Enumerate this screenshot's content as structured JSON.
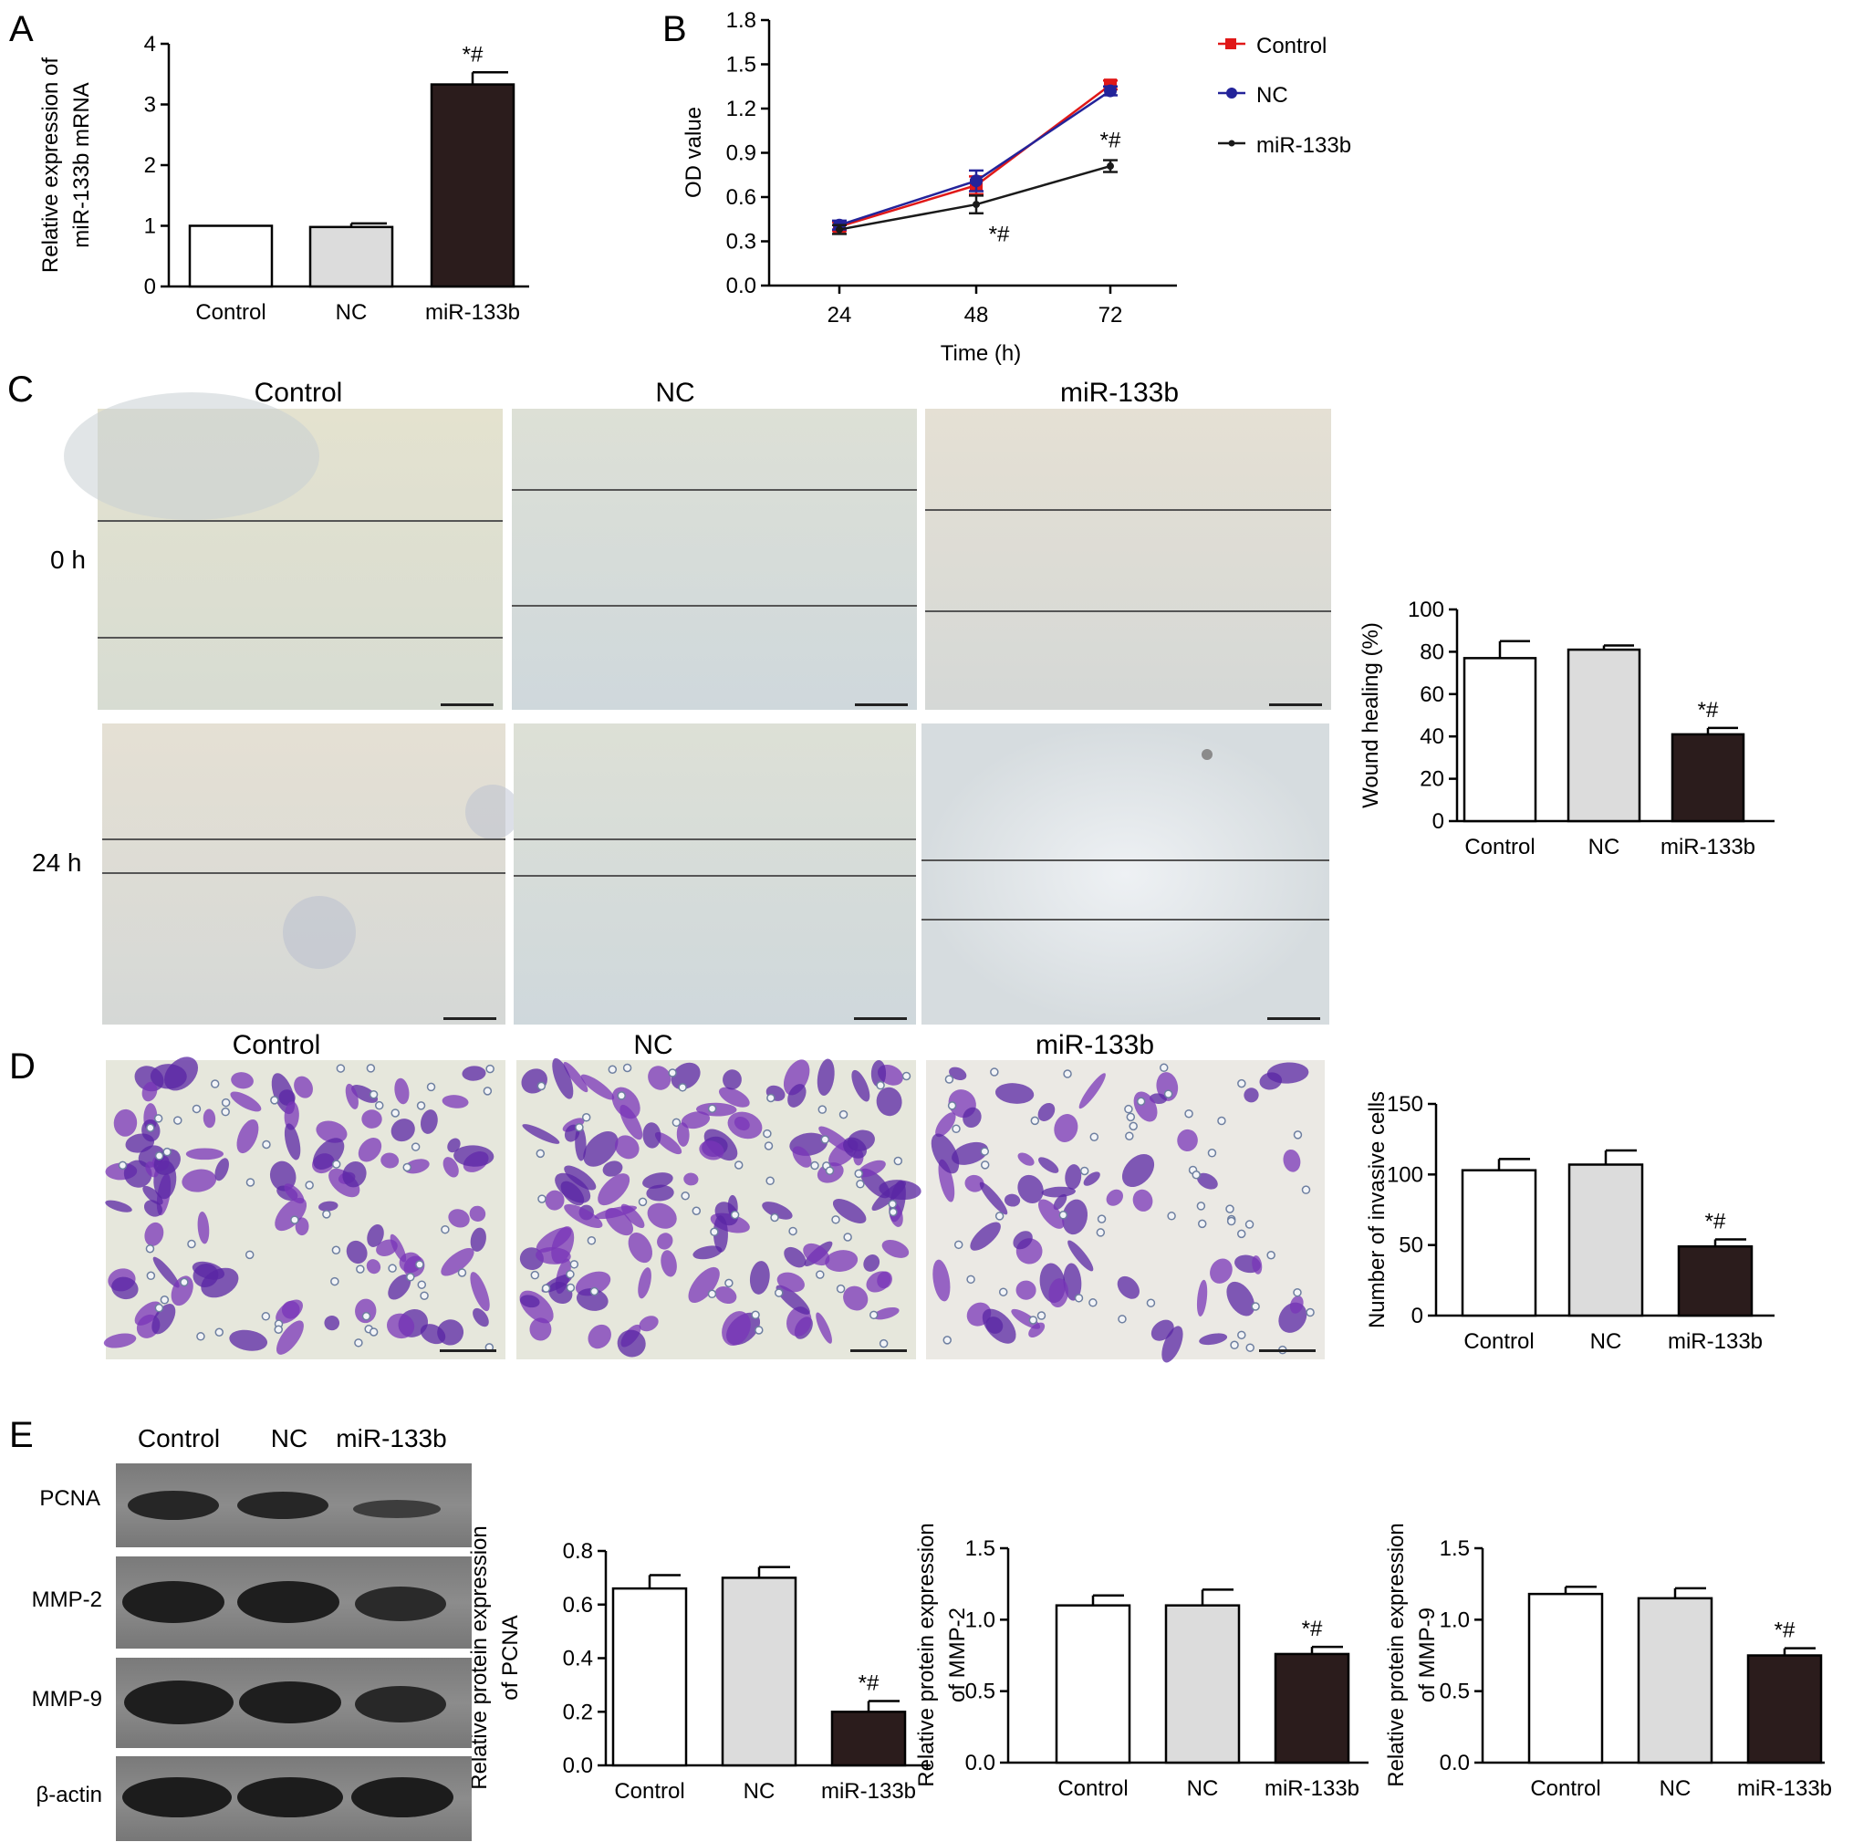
{
  "panels": {
    "A": "A",
    "B": "B",
    "C": "C",
    "D": "D",
    "E": "E"
  },
  "colors": {
    "bar_control": "#ffffff",
    "bar_nc": "#dcdcdc",
    "bar_mir": "#2b1c1c",
    "line_control": "#e01818",
    "line_nc": "#23239a",
    "line_mir": "#1a1a1a"
  },
  "panel_c": {
    "columns": [
      "Control",
      "NC",
      "miR-133b"
    ],
    "rows": [
      "0 h",
      "24 h"
    ]
  },
  "panel_d": {
    "columns": [
      "Control",
      "NC",
      "miR-133b"
    ]
  },
  "panel_e": {
    "lanes": [
      "Control",
      "NC",
      "miR-133b"
    ],
    "bands": [
      "PCNA",
      "MMP-2",
      "MMP-9",
      "β-actin"
    ]
  },
  "chart_data": [
    {
      "id": "A",
      "type": "bar",
      "categories": [
        "Control",
        "NC",
        "miR-133b"
      ],
      "values": [
        1.0,
        0.98,
        3.33
      ],
      "errors": [
        0.0,
        0.06,
        0.2
      ],
      "annotations": [
        "",
        "",
        "*#"
      ],
      "ylabel": [
        "Relative expression of",
        "miR-133b mRNA"
      ],
      "ylim": [
        0,
        4
      ],
      "yticks": [
        "0",
        "1",
        "2",
        "3",
        "4"
      ]
    },
    {
      "id": "B",
      "type": "line",
      "x": [
        24,
        48,
        72
      ],
      "xticks": [
        "24",
        "48",
        "72"
      ],
      "series": [
        {
          "name": "Control",
          "values": [
            0.4,
            0.68,
            1.36
          ],
          "errors": [
            0.03,
            0.06,
            0.03
          ],
          "marker": "square"
        },
        {
          "name": "NC",
          "values": [
            0.41,
            0.71,
            1.32
          ],
          "errors": [
            0.03,
            0.07,
            0.03
          ],
          "marker": "circle"
        },
        {
          "name": "miR-133b",
          "values": [
            0.38,
            0.55,
            0.81
          ],
          "errors": [
            0.03,
            0.06,
            0.04
          ],
          "marker": "dot"
        }
      ],
      "annotations": [
        {
          "x": 48,
          "text": "*#"
        },
        {
          "x": 72,
          "text": "*#"
        }
      ],
      "xlabel": "Time (h)",
      "ylabel": "OD value",
      "ylim": [
        0,
        1.8
      ],
      "yticks": [
        "0.0",
        "0.3",
        "0.6",
        "0.9",
        "1.2",
        "1.5",
        "1.8"
      ],
      "legend": "top-right"
    },
    {
      "id": "C",
      "type": "bar",
      "categories": [
        "Control",
        "NC",
        "miR-133b"
      ],
      "values": [
        77,
        81,
        41
      ],
      "errors": [
        8,
        2,
        3
      ],
      "annotations": [
        "",
        "",
        "*#"
      ],
      "ylabel": "Wound healing (%)",
      "ylim": [
        0,
        100
      ],
      "yticks": [
        "0",
        "20",
        "40",
        "60",
        "80",
        "100"
      ]
    },
    {
      "id": "D",
      "type": "bar",
      "categories": [
        "Control",
        "NC",
        "miR-133b"
      ],
      "values": [
        103,
        107,
        49
      ],
      "errors": [
        8,
        10,
        5
      ],
      "annotations": [
        "",
        "",
        "*#"
      ],
      "ylabel": "Number of invasive cells",
      "ylim": [
        0,
        150
      ],
      "yticks": [
        "0",
        "50",
        "100",
        "150"
      ]
    },
    {
      "id": "E1",
      "type": "bar",
      "categories": [
        "Control",
        "NC",
        "miR-133b"
      ],
      "values": [
        0.66,
        0.7,
        0.2
      ],
      "errors": [
        0.05,
        0.04,
        0.04
      ],
      "annotations": [
        "",
        "",
        "*#"
      ],
      "ylabel": [
        "Relative protein expression",
        "of PCNA"
      ],
      "ylim": [
        0,
        0.8
      ],
      "yticks": [
        "0.0",
        "0.2",
        "0.4",
        "0.6",
        "0.8"
      ]
    },
    {
      "id": "E2",
      "type": "bar",
      "categories": [
        "Control",
        "NC",
        "miR-133b"
      ],
      "values": [
        1.1,
        1.1,
        0.76
      ],
      "errors": [
        0.07,
        0.11,
        0.05
      ],
      "annotations": [
        "",
        "",
        "*#"
      ],
      "ylabel": [
        "Relative protein expression",
        "of MMP-2"
      ],
      "ylim": [
        0,
        1.5
      ],
      "yticks": [
        "0.0",
        "0.5",
        "1.0",
        "1.5"
      ]
    },
    {
      "id": "E3",
      "type": "bar",
      "categories": [
        "Control",
        "NC",
        "miR-133b"
      ],
      "values": [
        1.18,
        1.15,
        0.75
      ],
      "errors": [
        0.05,
        0.07,
        0.05
      ],
      "annotations": [
        "",
        "",
        "*#"
      ],
      "ylabel": [
        "Relative protein expression",
        "of MMP-9"
      ],
      "ylim": [
        0,
        1.5
      ],
      "yticks": [
        "0.0",
        "0.5",
        "1.0",
        "1.5"
      ]
    }
  ]
}
